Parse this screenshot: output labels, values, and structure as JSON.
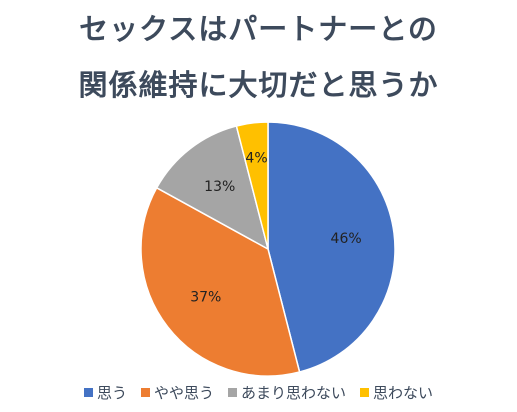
{
  "chart_data": {
    "type": "pie",
    "title": "セックスはパートナーとの関係維持に大切だと思うか",
    "title_lines": [
      "セックスはパートナーとの",
      "関係維持に大切だと思うか"
    ],
    "categories": [
      "思う",
      "やや思う",
      "あまり思わない",
      "思わない"
    ],
    "values": [
      46,
      37,
      13,
      4
    ],
    "data_labels": [
      "46%",
      "37%",
      "13%",
      "4%"
    ],
    "colors": [
      "#4472c4",
      "#ed7d31",
      "#a5a5a5",
      "#ffc000"
    ],
    "legend_position": "bottom",
    "start_angle_deg": 0,
    "direction": "clockwise"
  }
}
